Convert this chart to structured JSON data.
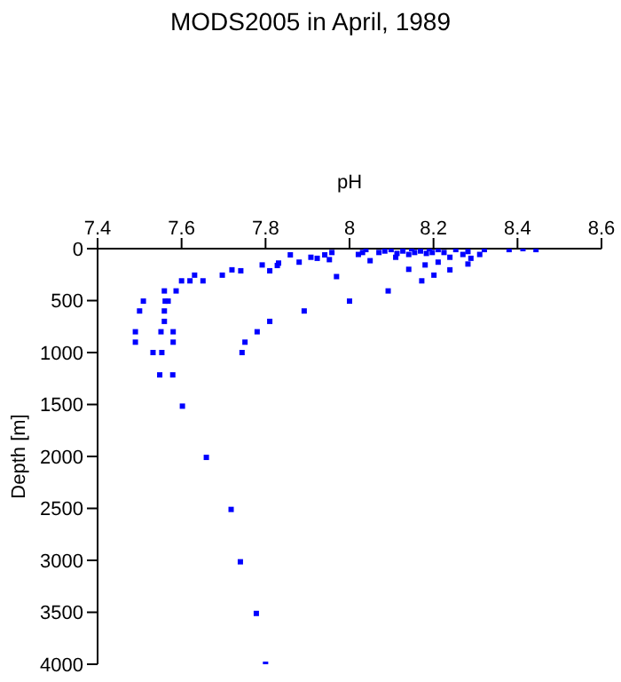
{
  "chart_data": {
    "type": "scatter",
    "title": "MODS2005 in April, 1989",
    "xlabel": "pH",
    "ylabel": "Depth [m]",
    "xlim": [
      7.4,
      8.6
    ],
    "xticks": [
      7.4,
      7.6,
      7.8,
      8,
      8.2,
      8.4,
      8.6
    ],
    "ylim": [
      4000,
      0
    ],
    "yticks": [
      0,
      500,
      1000,
      1500,
      2000,
      2500,
      3000,
      3500,
      4000
    ],
    "grid": false,
    "legend": false,
    "marker": "square",
    "series": [
      {
        "color": "#0000ff",
        "x": [
          8.021,
          8.039,
          8.031,
          8.07,
          8.084,
          8.099,
          8.113,
          8.127,
          8.141,
          8.148,
          8.155,
          8.169,
          8.183,
          8.19,
          8.197,
          8.211,
          8.225,
          8.239,
          8.253,
          8.27,
          8.282,
          8.289,
          8.31,
          8.321,
          8.38,
          8.413,
          8.444,
          8.049,
          8.11,
          8.141,
          8.18,
          8.211,
          8.239,
          8.282,
          8.172,
          8.201,
          8.092,
          8.0,
          7.969,
          7.952,
          7.958,
          7.941,
          7.923,
          7.908,
          7.88,
          7.859,
          7.831,
          7.828,
          7.81,
          7.792,
          7.741,
          7.72,
          7.697,
          7.651,
          7.631,
          7.62,
          7.6,
          7.587,
          7.559,
          7.561,
          7.568,
          7.509,
          7.5,
          7.559,
          7.559,
          7.49,
          7.49,
          7.551,
          7.58,
          7.58,
          7.532,
          7.553,
          7.744,
          7.751,
          7.78,
          7.81,
          7.892,
          7.548,
          7.579,
          7.602,
          7.659,
          7.718,
          7.74,
          7.778,
          7.8
        ],
        "values": [
          56,
          9,
          37,
          37,
          23,
          9,
          46,
          23,
          56,
          0,
          37,
          23,
          46,
          0,
          37,
          9,
          37,
          83,
          9,
          56,
          28,
          93,
          56,
          9,
          9,
          0,
          9,
          116,
          83,
          199,
          157,
          130,
          204,
          148,
          310,
          255,
          407,
          505,
          269,
          106,
          37,
          60,
          93,
          83,
          130,
          60,
          139,
          162,
          213,
          157,
          213,
          204,
          255,
          310,
          255,
          310,
          310,
          407,
          407,
          505,
          505,
          505,
          600,
          600,
          700,
          800,
          900,
          800,
          800,
          900,
          1000,
          1000,
          1000,
          900,
          800,
          700,
          600,
          1215,
          1215,
          1516,
          2009,
          2510,
          3014,
          3511,
          4000
        ]
      }
    ]
  }
}
